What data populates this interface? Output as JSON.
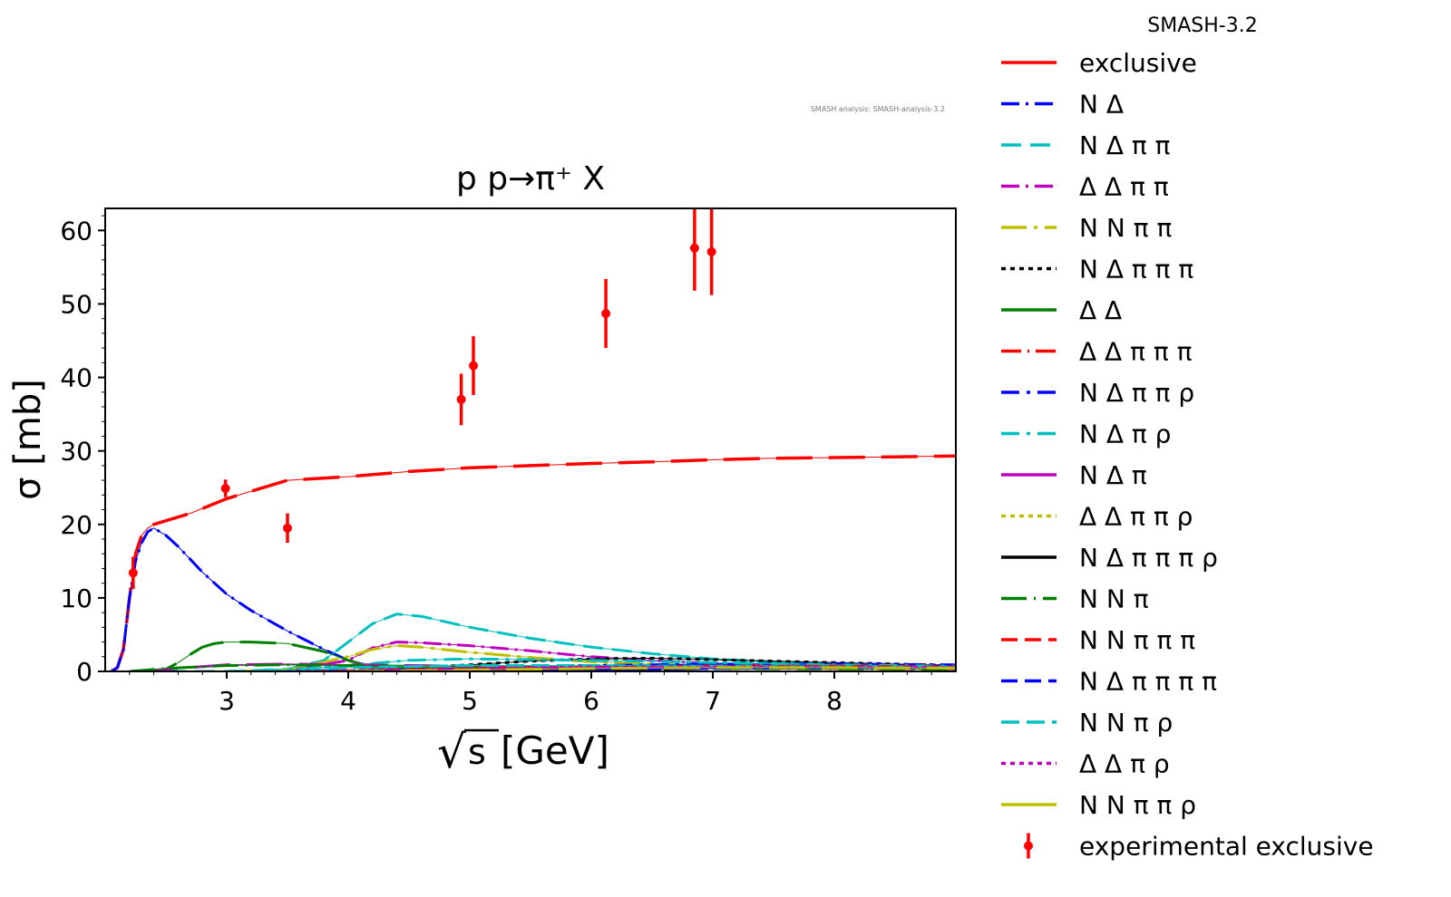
{
  "chart_data": {
    "type": "line",
    "title": "p p→π⁺ X",
    "xlabel": "√s [GeV]",
    "xlabel_radical": "√",
    "xlabel_s": "s",
    "xlabel_unit": "[GeV]",
    "ylabel": "σ [mb]",
    "xlim": [
      2.0,
      9.0
    ],
    "ylim": [
      0,
      63
    ],
    "x_ticks": [
      3,
      4,
      5,
      6,
      7,
      8
    ],
    "y_ticks": [
      0,
      10,
      20,
      30,
      40,
      50,
      60
    ],
    "grid": false,
    "legend_title": "SMASH-3.2",
    "legend_position": "outside-right",
    "version_note": "SMASH analysis: SMASH-analysis-3.2",
    "series": [
      {
        "name": "exclusive",
        "color": "#ff0000",
        "dash": "",
        "x": [
          2.05,
          2.1,
          2.15,
          2.2,
          2.25,
          2.3,
          2.35,
          2.4,
          2.5,
          2.7,
          3.0,
          3.3,
          3.5,
          3.7,
          4.0,
          4.5,
          5.0,
          5.5,
          6.0,
          6.5,
          7.0,
          7.5,
          8.0,
          8.5,
          9.0
        ],
        "y": [
          0,
          0.5,
          3,
          10,
          16,
          18.5,
          19.5,
          20,
          20.5,
          21.5,
          23.5,
          25,
          26,
          26.2,
          26.5,
          27.2,
          27.7,
          28,
          28.3,
          28.5,
          28.8,
          29,
          29.1,
          29.2,
          29.3
        ]
      },
      {
        "name": "N Δ",
        "color": "#0000ff",
        "dash": "20,7,3,7",
        "x": [
          2.05,
          2.1,
          2.15,
          2.2,
          2.25,
          2.3,
          2.35,
          2.4,
          2.5,
          2.6,
          2.8,
          3.0,
          3.2,
          3.5,
          3.8,
          4.0,
          4.2,
          4.5
        ],
        "y": [
          0,
          0.5,
          3,
          10,
          15,
          17.5,
          19,
          19.5,
          18.5,
          17,
          13.5,
          10.5,
          8.3,
          5.5,
          3,
          1.5,
          0.6,
          0.3
        ]
      },
      {
        "name": "N Δ π π",
        "color": "#00bfbf",
        "dash": "22,10",
        "x": [
          2.5,
          3.0,
          3.5,
          3.8,
          4.0,
          4.2,
          4.4,
          4.6,
          5.0,
          5.5,
          6.0,
          6.5,
          7.0,
          7.5,
          8.0,
          8.5,
          9.0
        ],
        "y": [
          0,
          0,
          0.3,
          1.5,
          4,
          6.5,
          7.8,
          7.5,
          6,
          4.5,
          3.3,
          2.4,
          1.7,
          1.3,
          1.0,
          0.8,
          0.6
        ]
      },
      {
        "name": "Δ Δ π π",
        "color": "#bf00bf",
        "dash": "20,7,3,7",
        "x": [
          3.0,
          3.5,
          4.0,
          4.2,
          4.4,
          4.6,
          5.0,
          5.5,
          6.0,
          6.5,
          7.0,
          8.0,
          9.0
        ],
        "y": [
          0,
          0.1,
          1.5,
          3.2,
          4,
          3.9,
          3.5,
          2.8,
          2,
          1.5,
          1.1,
          0.7,
          0.5
        ]
      },
      {
        "name": "N N π π",
        "color": "#bfbf00",
        "dash": "28,8,4,8",
        "x": [
          3.0,
          3.5,
          4.0,
          4.2,
          4.4,
          4.6,
          5.0,
          5.5,
          6.0,
          7.0,
          8.0,
          9.0
        ],
        "y": [
          0,
          0.2,
          2,
          3,
          3.5,
          3.3,
          2.6,
          1.9,
          1.3,
          0.7,
          0.4,
          0.3
        ]
      },
      {
        "name": "N Δ π π π",
        "color": "#000000",
        "dash": "5,5",
        "x": [
          3.5,
          4.0,
          4.5,
          5.0,
          5.5,
          6.0,
          6.5,
          7.0,
          7.5,
          8.0,
          8.5,
          9.0
        ],
        "y": [
          0,
          0.1,
          0.4,
          0.9,
          1.4,
          1.7,
          1.8,
          1.6,
          1.4,
          1.2,
          1.0,
          0.8
        ]
      },
      {
        "name": "Δ Δ",
        "color": "#008000",
        "dash": "",
        "x": [
          2.3,
          2.4,
          2.5,
          2.6,
          2.7,
          2.8,
          2.9,
          3.0,
          3.2,
          3.5,
          3.8,
          4.0,
          4.2,
          4.5,
          5.0
        ],
        "y": [
          0,
          0,
          0.3,
          1.2,
          2.3,
          3.3,
          3.8,
          4,
          4,
          3.8,
          2.7,
          1.5,
          0.6,
          0.3,
          0.1
        ]
      },
      {
        "name": "Δ Δ π π π",
        "color": "#ff0000",
        "dash": "22,7,2,7",
        "x": [
          3.5,
          4.0,
          5.0,
          6.0,
          7.0,
          8.0,
          9.0
        ],
        "y": [
          0,
          0.05,
          0.3,
          0.6,
          0.8,
          0.8,
          0.7
        ]
      },
      {
        "name": "N Δ π π ρ",
        "color": "#0000ff",
        "dash": "20,8,4,8",
        "x": [
          3.5,
          4.0,
          5.0,
          6.0,
          7.0,
          8.0,
          9.0
        ],
        "y": [
          0,
          0.05,
          0.4,
          0.8,
          1.0,
          1.0,
          0.9
        ]
      },
      {
        "name": "N Δ π ρ",
        "color": "#00bfbf",
        "dash": "20,8,4,8",
        "x": [
          3.0,
          3.5,
          4.0,
          4.5,
          5.0,
          6.0,
          7.0,
          8.0,
          9.0
        ],
        "y": [
          0,
          0.2,
          0.8,
          1.5,
          1.7,
          1.5,
          1.2,
          0.9,
          0.7
        ]
      },
      {
        "name": "N Δ π",
        "color": "#bf00bf",
        "dash": "",
        "x": [
          2.3,
          2.5,
          3.0,
          3.5,
          4.0,
          4.5,
          5.0,
          6.0,
          7.0,
          8.0,
          9.0
        ],
        "y": [
          0,
          0.3,
          0.9,
          1.0,
          0.9,
          0.8,
          0.7,
          0.6,
          0.5,
          0.4,
          0.35
        ]
      },
      {
        "name": "Δ Δ π π ρ",
        "color": "#bfbf00",
        "dash": "5,5",
        "x": [
          4.0,
          5.0,
          6.0,
          7.0,
          8.0,
          9.0
        ],
        "y": [
          0,
          0.1,
          0.3,
          0.5,
          0.6,
          0.6
        ]
      },
      {
        "name": "N Δ π π π ρ",
        "color": "#000000",
        "dash": "",
        "x": [
          4.0,
          5.0,
          6.0,
          7.0,
          8.0,
          9.0
        ],
        "y": [
          0,
          0.1,
          0.2,
          0.4,
          0.5,
          0.5
        ]
      },
      {
        "name": "N N π",
        "color": "#008000",
        "dash": "28,8,2,8",
        "x": [
          2.2,
          2.5,
          3.0,
          3.5,
          4.0,
          4.5,
          5.0,
          6.0,
          7.0,
          8.0,
          9.0
        ],
        "y": [
          0,
          0.4,
          0.8,
          0.9,
          0.8,
          0.7,
          0.6,
          0.5,
          0.4,
          0.35,
          0.3
        ]
      },
      {
        "name": "N N π π π",
        "color": "#ff0000",
        "dash": "18,8",
        "x": [
          3.5,
          4.0,
          5.0,
          6.0,
          7.0,
          8.0,
          9.0
        ],
        "y": [
          0,
          0.1,
          0.4,
          0.6,
          0.7,
          0.7,
          0.6
        ]
      },
      {
        "name": "N Δ π π π π",
        "color": "#0000ff",
        "dash": "18,8",
        "x": [
          4.5,
          5.0,
          6.0,
          7.0,
          8.0,
          9.0
        ],
        "y": [
          0,
          0.05,
          0.2,
          0.4,
          0.5,
          0.5
        ]
      },
      {
        "name": "N N π ρ",
        "color": "#00bfbf",
        "dash": "20,8",
        "x": [
          3.0,
          3.5,
          4.0,
          5.0,
          6.0,
          7.0,
          8.0,
          9.0
        ],
        "y": [
          0,
          0.1,
          0.5,
          0.8,
          0.8,
          0.7,
          0.6,
          0.5
        ]
      },
      {
        "name": "Δ Δ π ρ",
        "color": "#bf00bf",
        "dash": "5,5",
        "x": [
          3.5,
          4.0,
          5.0,
          6.0,
          7.0,
          8.0,
          9.0
        ],
        "y": [
          0,
          0.1,
          0.4,
          0.6,
          0.6,
          0.6,
          0.5
        ]
      },
      {
        "name": "N N π π ρ",
        "color": "#bfbf00",
        "dash": "",
        "x": [
          4.0,
          5.0,
          6.0,
          7.0,
          8.0,
          9.0
        ],
        "y": [
          0,
          0.2,
          0.4,
          0.5,
          0.5,
          0.45
        ]
      }
    ],
    "experimental": {
      "name": "experimental exclusive",
      "color": "#ff0000",
      "points": [
        {
          "x": 2.23,
          "y": 13.4,
          "err": 2.2
        },
        {
          "x": 2.99,
          "y": 24.9,
          "err": 1.2
        },
        {
          "x": 3.5,
          "y": 19.5,
          "err": 2.0
        },
        {
          "x": 4.93,
          "y": 37.0,
          "err": 3.5
        },
        {
          "x": 5.03,
          "y": 41.6,
          "err": 4.0
        },
        {
          "x": 6.12,
          "y": 48.7,
          "err": 4.7
        },
        {
          "x": 6.85,
          "y": 57.6,
          "err": 5.8
        },
        {
          "x": 6.99,
          "y": 57.1,
          "err": 5.9
        }
      ]
    }
  }
}
